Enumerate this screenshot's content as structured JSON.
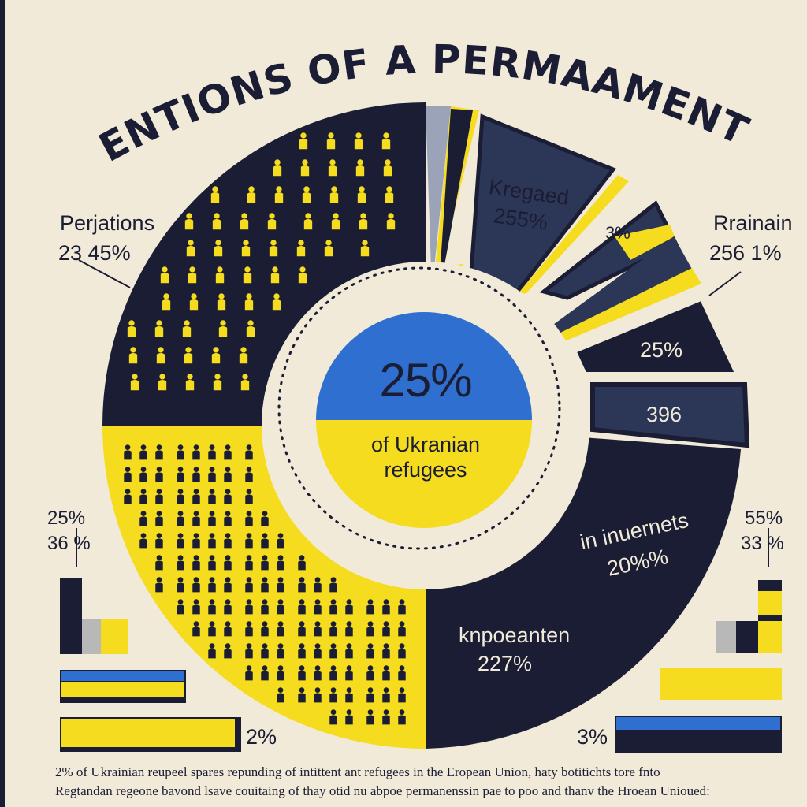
{
  "title": "INTTENTIONS OF A PERMAAMENT STAY",
  "center": {
    "value": "25%",
    "label_1": "of Ukranian",
    "label_2": "refugees"
  },
  "colors": {
    "navy": "#1a1d33",
    "slate": "#2c3656",
    "yellow": "#f5dc1e",
    "blue": "#2f6fd0",
    "paper": "#f1ead9"
  },
  "chart_data": {
    "type": "pie",
    "title": "INTTENTIONS OF A PERMAAMENT STAY",
    "center_label": "25% of Ukranian refugees",
    "slices": [
      {
        "label": "Kregaed",
        "value_text": "255%",
        "color": "#2c3656"
      },
      {
        "label": "",
        "value_text": "3%",
        "color": "#2c3656"
      },
      {
        "label": "",
        "value_text": "25%",
        "color": "#1a1d33"
      },
      {
        "label": "",
        "value_text": "396",
        "color": "#2c3656"
      },
      {
        "label": "in inuernets",
        "value_text": "20%%",
        "color": "#1a1d33"
      },
      {
        "label": "Knpoeanten",
        "value_text": "227%",
        "color": "#1a1d33"
      }
    ],
    "callouts": [
      {
        "label": "Perjations",
        "value_text": "23 45%"
      },
      {
        "label": "Rrainain",
        "value_text": "256 1%"
      },
      {
        "values": [
          "25%",
          "36 %"
        ]
      },
      {
        "values": [
          "55%",
          "33 %"
        ]
      }
    ],
    "bar_labels": [
      "2%",
      "3%"
    ]
  },
  "labels": {
    "left_top_name": "Perjations",
    "left_top_val": "23 45%",
    "right_top_name": "Rrainain",
    "right_top_val": "256 1%",
    "left_mid_1": "25%",
    "left_mid_2": "36 %",
    "right_mid_1": "55%",
    "right_mid_2": "33 %",
    "bar_left": "2%",
    "bar_right": "3%"
  },
  "wedges": {
    "w1_name": "Kregaed",
    "w1_val": "255%",
    "w2_val": "3%",
    "w3_val": "25%",
    "w4_val": "396",
    "w5_name": "in inuernets",
    "w5_val": "20%%",
    "w6_name": "knpoeanten",
    "w6_val": "227%"
  },
  "footnote": {
    "line1": "2% of Ukrainian reupeel spares repunding of intittent ant refugees in the Eropean Union, haty botitichts tore fnto",
    "line2": "Regtandan regeone bavond lsave couitaing of thay otid nu abpoe permanenssin pae to poo and thanv the Hroean Unioued:"
  }
}
